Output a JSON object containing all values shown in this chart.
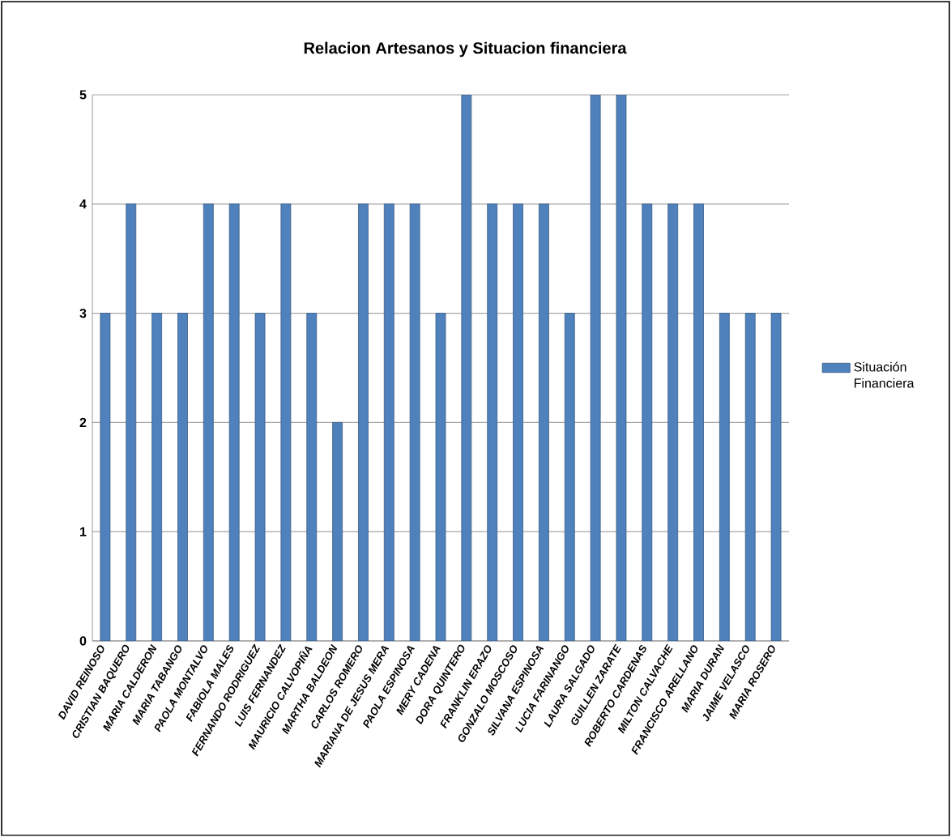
{
  "chart_data": {
    "type": "bar",
    "title": "Relacion Artesanos y Situacion financiera",
    "categories": [
      "DAVID REINOSO",
      "CRISTIAN BAQUERO",
      "MARIA CALDERON",
      "MARIA TABANGO",
      "PAOLA MONTALVO",
      "FABIOLA MALES",
      "FERNANDO RODRIGUEZ",
      "LUIS FERNANDEZ",
      "MAURICIO CALVOPIÑA",
      "MARTHA BALDEON",
      "CARLOS ROMERO",
      "MARIANA DE JESUS MERA",
      "PAOLA ESPINOSA",
      "MERY CADENA",
      "DORA QUINTERO",
      "FRANKLIN ERAZO",
      "GONZALO MOSCOSO",
      "SILVANA ESPINOSA",
      "LUCIA FARINANGO",
      "LAURA SALGADO",
      "GUILLEN ZARATE",
      "ROBERTO CARDENAS",
      "MILTON CALVACHE",
      "FRANCISCO ARELLANO",
      "MARIA DURAN",
      "JAIME VELASCO",
      "MARIA ROSERO"
    ],
    "series": [
      {
        "name": "Situación Financiera",
        "color": "#4f81bd",
        "values": [
          3,
          4,
          3,
          3,
          4,
          4,
          3,
          4,
          3,
          2,
          4,
          4,
          4,
          3,
          5,
          4,
          4,
          4,
          3,
          5,
          5,
          4,
          4,
          4,
          3,
          3,
          3
        ]
      }
    ],
    "ylim": [
      0,
      5
    ],
    "yticks": [
      0,
      1,
      2,
      3,
      4,
      5
    ],
    "grid": "y",
    "legend": "right"
  }
}
